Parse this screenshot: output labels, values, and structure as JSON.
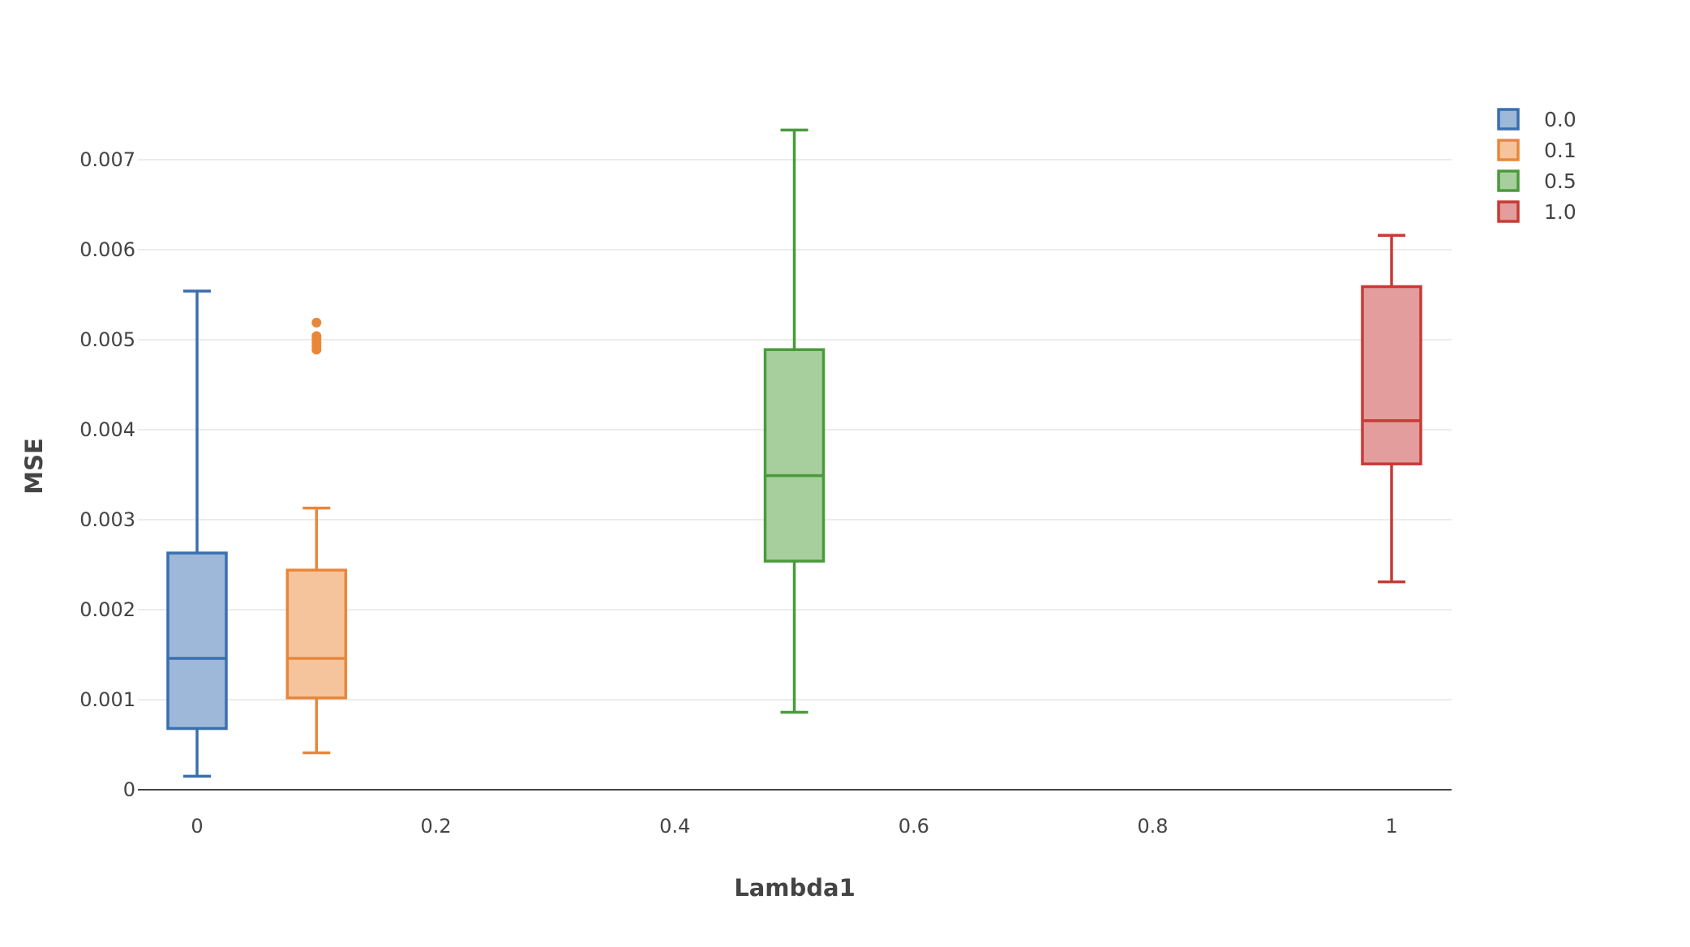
{
  "chart_data": {
    "type": "box",
    "title": "",
    "xlabel": "Lambda1",
    "ylabel": "MSE",
    "xlim": [
      -0.1,
      1.05
    ],
    "ylim": [
      0,
      0.0078
    ],
    "x_ticks": [
      0,
      0.2,
      0.4,
      0.6,
      0.8,
      1
    ],
    "x_tick_labels": [
      "0",
      "0.2",
      "0.4",
      "0.6",
      "0.8",
      "1"
    ],
    "y_ticks": [
      0,
      0.001,
      0.002,
      0.003,
      0.004,
      0.005,
      0.006,
      0.007
    ],
    "y_tick_labels": [
      "0",
      "0.001",
      "0.002",
      "0.003",
      "0.004",
      "0.005",
      "0.006",
      "0.007"
    ],
    "grid": true,
    "legend_position": "top-right",
    "series": [
      {
        "name": "0.0",
        "x": 0,
        "color": "#3a6fae",
        "fill": "#9db8d8",
        "whisker_low": 0.00015,
        "q1": 0.00068,
        "median": 0.00146,
        "q3": 0.00263,
        "whisker_high": 0.00554,
        "outliers": []
      },
      {
        "name": "0.1",
        "x": 0.1,
        "color": "#e8873a",
        "fill": "#f6c49c",
        "whisker_low": 0.00041,
        "q1": 0.00102,
        "median": 0.00146,
        "q3": 0.00244,
        "whisker_high": 0.00313,
        "outliers": [
          0.00489,
          0.00493,
          0.00497,
          0.00501,
          0.00504,
          0.00519
        ]
      },
      {
        "name": "0.5",
        "x": 0.5,
        "color": "#4a9a3c",
        "fill": "#a7cf9d",
        "whisker_low": 0.00086,
        "q1": 0.00254,
        "median": 0.00349,
        "q3": 0.00489,
        "whisker_high": 0.00733,
        "outliers": []
      },
      {
        "name": "1.0",
        "x": 1,
        "color": "#c83a35",
        "fill": "#e29d9c",
        "whisker_low": 0.00231,
        "q1": 0.00362,
        "median": 0.0041,
        "q3": 0.00559,
        "whisker_high": 0.00616,
        "outliers": []
      }
    ]
  }
}
